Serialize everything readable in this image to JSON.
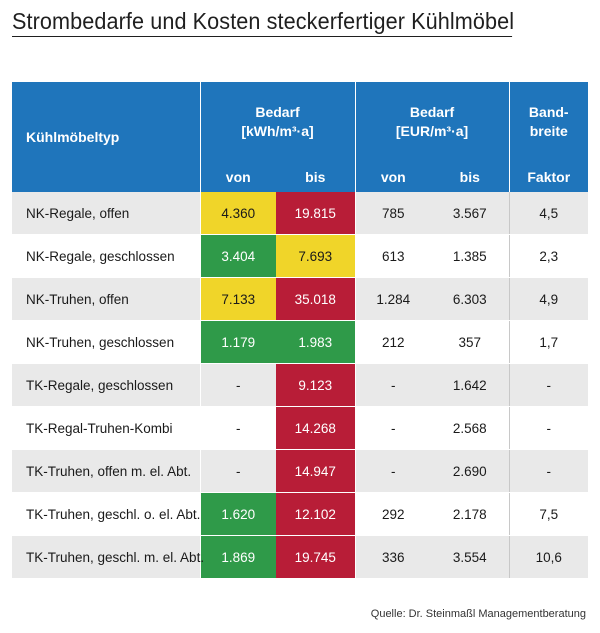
{
  "title": "Strombedarfe und Kosten steckerfertiger Kühlmöbel",
  "source": "Quelle: Dr. Steinmaßl Managementberatung",
  "colors": {
    "header": "#1f75bb",
    "green": "#2f9a49",
    "yellow": "#f0d529",
    "red": "#b81d37",
    "stripe": "#e9e9e9"
  },
  "chart_data": {
    "type": "table",
    "title": "Strombedarfe und Kosten steckerfertiger Kühlmöbel",
    "header": {
      "type_label": "Kühlmöbeltyp",
      "group1": {
        "line1": "Bedarf",
        "line2": "[kWh/m³·a]"
      },
      "group2": {
        "line1": "Bedarf",
        "line2": "[EUR/m³·a]"
      },
      "group3": {
        "line1": "Band-",
        "line2": "breite"
      },
      "von": "von",
      "bis": "bis",
      "factor": "Faktor"
    },
    "columns": [
      "Kühlmöbeltyp",
      "Bedarf kWh von",
      "Bedarf kWh bis",
      "Bedarf EUR von",
      "Bedarf EUR bis",
      "Bandbreite Faktor"
    ],
    "rows": [
      {
        "type": "NK-Regale, offen",
        "kwh_von": "4.360",
        "kwh_bis": "19.815",
        "eur_von": "785",
        "eur_bis": "3.567",
        "faktor": "4,5",
        "von_color": "yellow",
        "bis_color": "red"
      },
      {
        "type": "NK-Regale, geschlossen",
        "kwh_von": "3.404",
        "kwh_bis": "7.693",
        "eur_von": "613",
        "eur_bis": "1.385",
        "faktor": "2,3",
        "von_color": "green",
        "bis_color": "yellow"
      },
      {
        "type": "NK-Truhen, offen",
        "kwh_von": "7.133",
        "kwh_bis": "35.018",
        "eur_von": "1.284",
        "eur_bis": "6.303",
        "faktor": "4,9",
        "von_color": "yellow",
        "bis_color": "red"
      },
      {
        "type": "NK-Truhen, geschlossen",
        "kwh_von": "1.179",
        "kwh_bis": "1.983",
        "eur_von": "212",
        "eur_bis": "357",
        "faktor": "1,7",
        "von_color": "green",
        "bis_color": "green"
      },
      {
        "type": "TK-Regale, geschlossen",
        "kwh_von": "-",
        "kwh_bis": "9.123",
        "eur_von": "-",
        "eur_bis": "1.642",
        "faktor": "-",
        "von_color": "",
        "bis_color": "red"
      },
      {
        "type": "TK-Regal-Truhen-Kombi",
        "kwh_von": "-",
        "kwh_bis": "14.268",
        "eur_von": "-",
        "eur_bis": "2.568",
        "faktor": "-",
        "von_color": "",
        "bis_color": "red"
      },
      {
        "type": "TK-Truhen, offen m. el. Abt.",
        "kwh_von": "-",
        "kwh_bis": "14.947",
        "eur_von": "-",
        "eur_bis": "2.690",
        "faktor": "-",
        "von_color": "",
        "bis_color": "red"
      },
      {
        "type": "TK-Truhen, geschl. o. el. Abt.",
        "kwh_von": "1.620",
        "kwh_bis": "12.102",
        "eur_von": "292",
        "eur_bis": "2.178",
        "faktor": "7,5",
        "von_color": "green",
        "bis_color": "red"
      },
      {
        "type": "TK-Truhen, geschl. m. el. Abt.",
        "kwh_von": "1.869",
        "kwh_bis": "19.745",
        "eur_von": "336",
        "eur_bis": "3.554",
        "faktor": "10,6",
        "von_color": "green",
        "bis_color": "red"
      }
    ]
  }
}
